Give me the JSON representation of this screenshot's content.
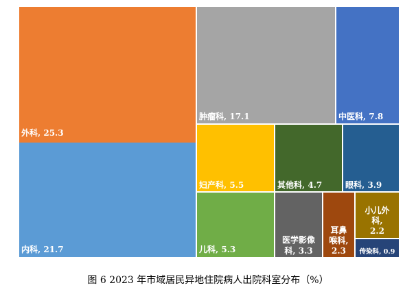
{
  "chart_data": {
    "type": "treemap",
    "unit": "%",
    "caption": "图 6   2023 年市域居民异地住院病人出院科室分布（%）",
    "items": [
      {
        "name": "外科",
        "value": 25.3,
        "color": "#ED7D31",
        "label_lines": [
          "外科, 25.3"
        ]
      },
      {
        "name": "内科",
        "value": 21.7,
        "color": "#5B9BD5",
        "label_lines": [
          "内科, 21.7"
        ]
      },
      {
        "name": "肿瘤科",
        "value": 17.1,
        "color": "#A5A5A5",
        "label_lines": [
          "肿瘤科, 17.1"
        ]
      },
      {
        "name": "中医科",
        "value": 7.8,
        "color": "#4472C4",
        "label_lines": [
          "中医科, 7.8"
        ]
      },
      {
        "name": "妇产科",
        "value": 5.5,
        "color": "#FFC000",
        "label_lines": [
          "妇产科, 5.5"
        ]
      },
      {
        "name": "儿科",
        "value": 5.3,
        "color": "#70AD47",
        "label_lines": [
          "儿科, 5.3"
        ]
      },
      {
        "name": "其他科",
        "value": 4.7,
        "color": "#43682B",
        "label_lines": [
          "其他科, 4.7"
        ]
      },
      {
        "name": "眼科",
        "value": 3.9,
        "color": "#255E91",
        "label_lines": [
          "眼科, 3.9"
        ]
      },
      {
        "name": "医学影像科",
        "value": 3.3,
        "color": "#636363",
        "label_lines": [
          "医学影像",
          "科, 3.3"
        ]
      },
      {
        "name": "耳鼻喉科",
        "value": 2.3,
        "color": "#9E480E",
        "label_lines": [
          "耳鼻",
          "喉科,",
          "2.3"
        ]
      },
      {
        "name": "小儿外科",
        "value": 2.2,
        "color": "#997300",
        "label_lines": [
          "小儿外",
          "科,",
          "2.2"
        ]
      },
      {
        "name": "传染科",
        "value": 0.9,
        "color": "#264478",
        "label_lines": [
          "传染科, 0.9"
        ]
      }
    ]
  }
}
